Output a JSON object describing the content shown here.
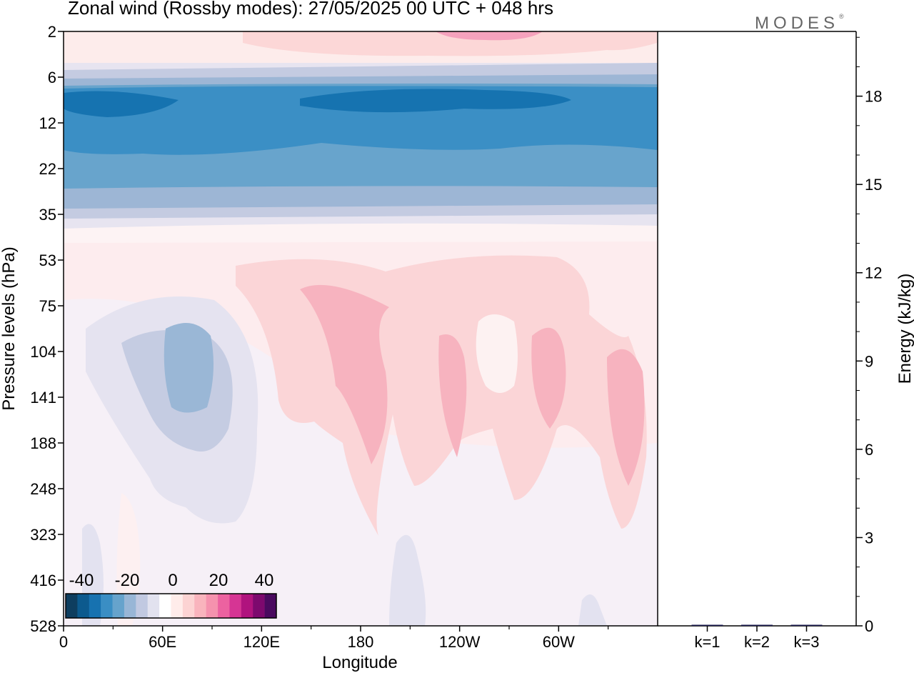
{
  "title": "Zonal wind (Rossby modes):  27/05/2025  00 UTC  + 048 hrs",
  "logo": "MODES",
  "logo_mark": "®",
  "chart_data": [
    {
      "type": "heatmap",
      "title": "Zonal wind (Rossby modes):  27/05/2025  00 UTC  + 048 hrs",
      "xlabel": "Longitude",
      "ylabel": "Pressure levels (hPa)",
      "x_ticks": [
        "0",
        "60E",
        "120E",
        "180",
        "120W",
        "60W"
      ],
      "y_ticks": [
        "2",
        "6",
        "12",
        "22",
        "35",
        "53",
        "75",
        "104",
        "141",
        "188",
        "248",
        "323",
        "416",
        "528"
      ],
      "y_scale": "log, inverted",
      "legend": {
        "placement": "bottom-left",
        "tick_labels": [
          "-40",
          "-20",
          "0",
          "20",
          "40"
        ],
        "colors": [
          "#0e3e5f",
          "#0c5a8e",
          "#1772b0",
          "#3a8ec4",
          "#66a3cc",
          "#98b6d6",
          "#c1c9e1",
          "#e2e2ef",
          "#ffffff",
          "#ffecea",
          "#fcd3d3",
          "#f9b4bd",
          "#f592ae",
          "#ec62a0",
          "#d63594",
          "#b0137e",
          "#7d096e",
          "#4a0a5f"
        ]
      }
    },
    {
      "type": "bar",
      "ylabel": "Energy (kJ/kg)",
      "categories": [
        "k=1",
        "k=2",
        "k=3"
      ],
      "values": [
        0.03,
        0.02,
        0.02
      ],
      "y_ticks": [
        "0",
        "3",
        "6",
        "9",
        "12",
        "15",
        "18"
      ],
      "ylim": [
        0,
        20.2
      ],
      "bar_color": "#1a1a4e"
    }
  ]
}
